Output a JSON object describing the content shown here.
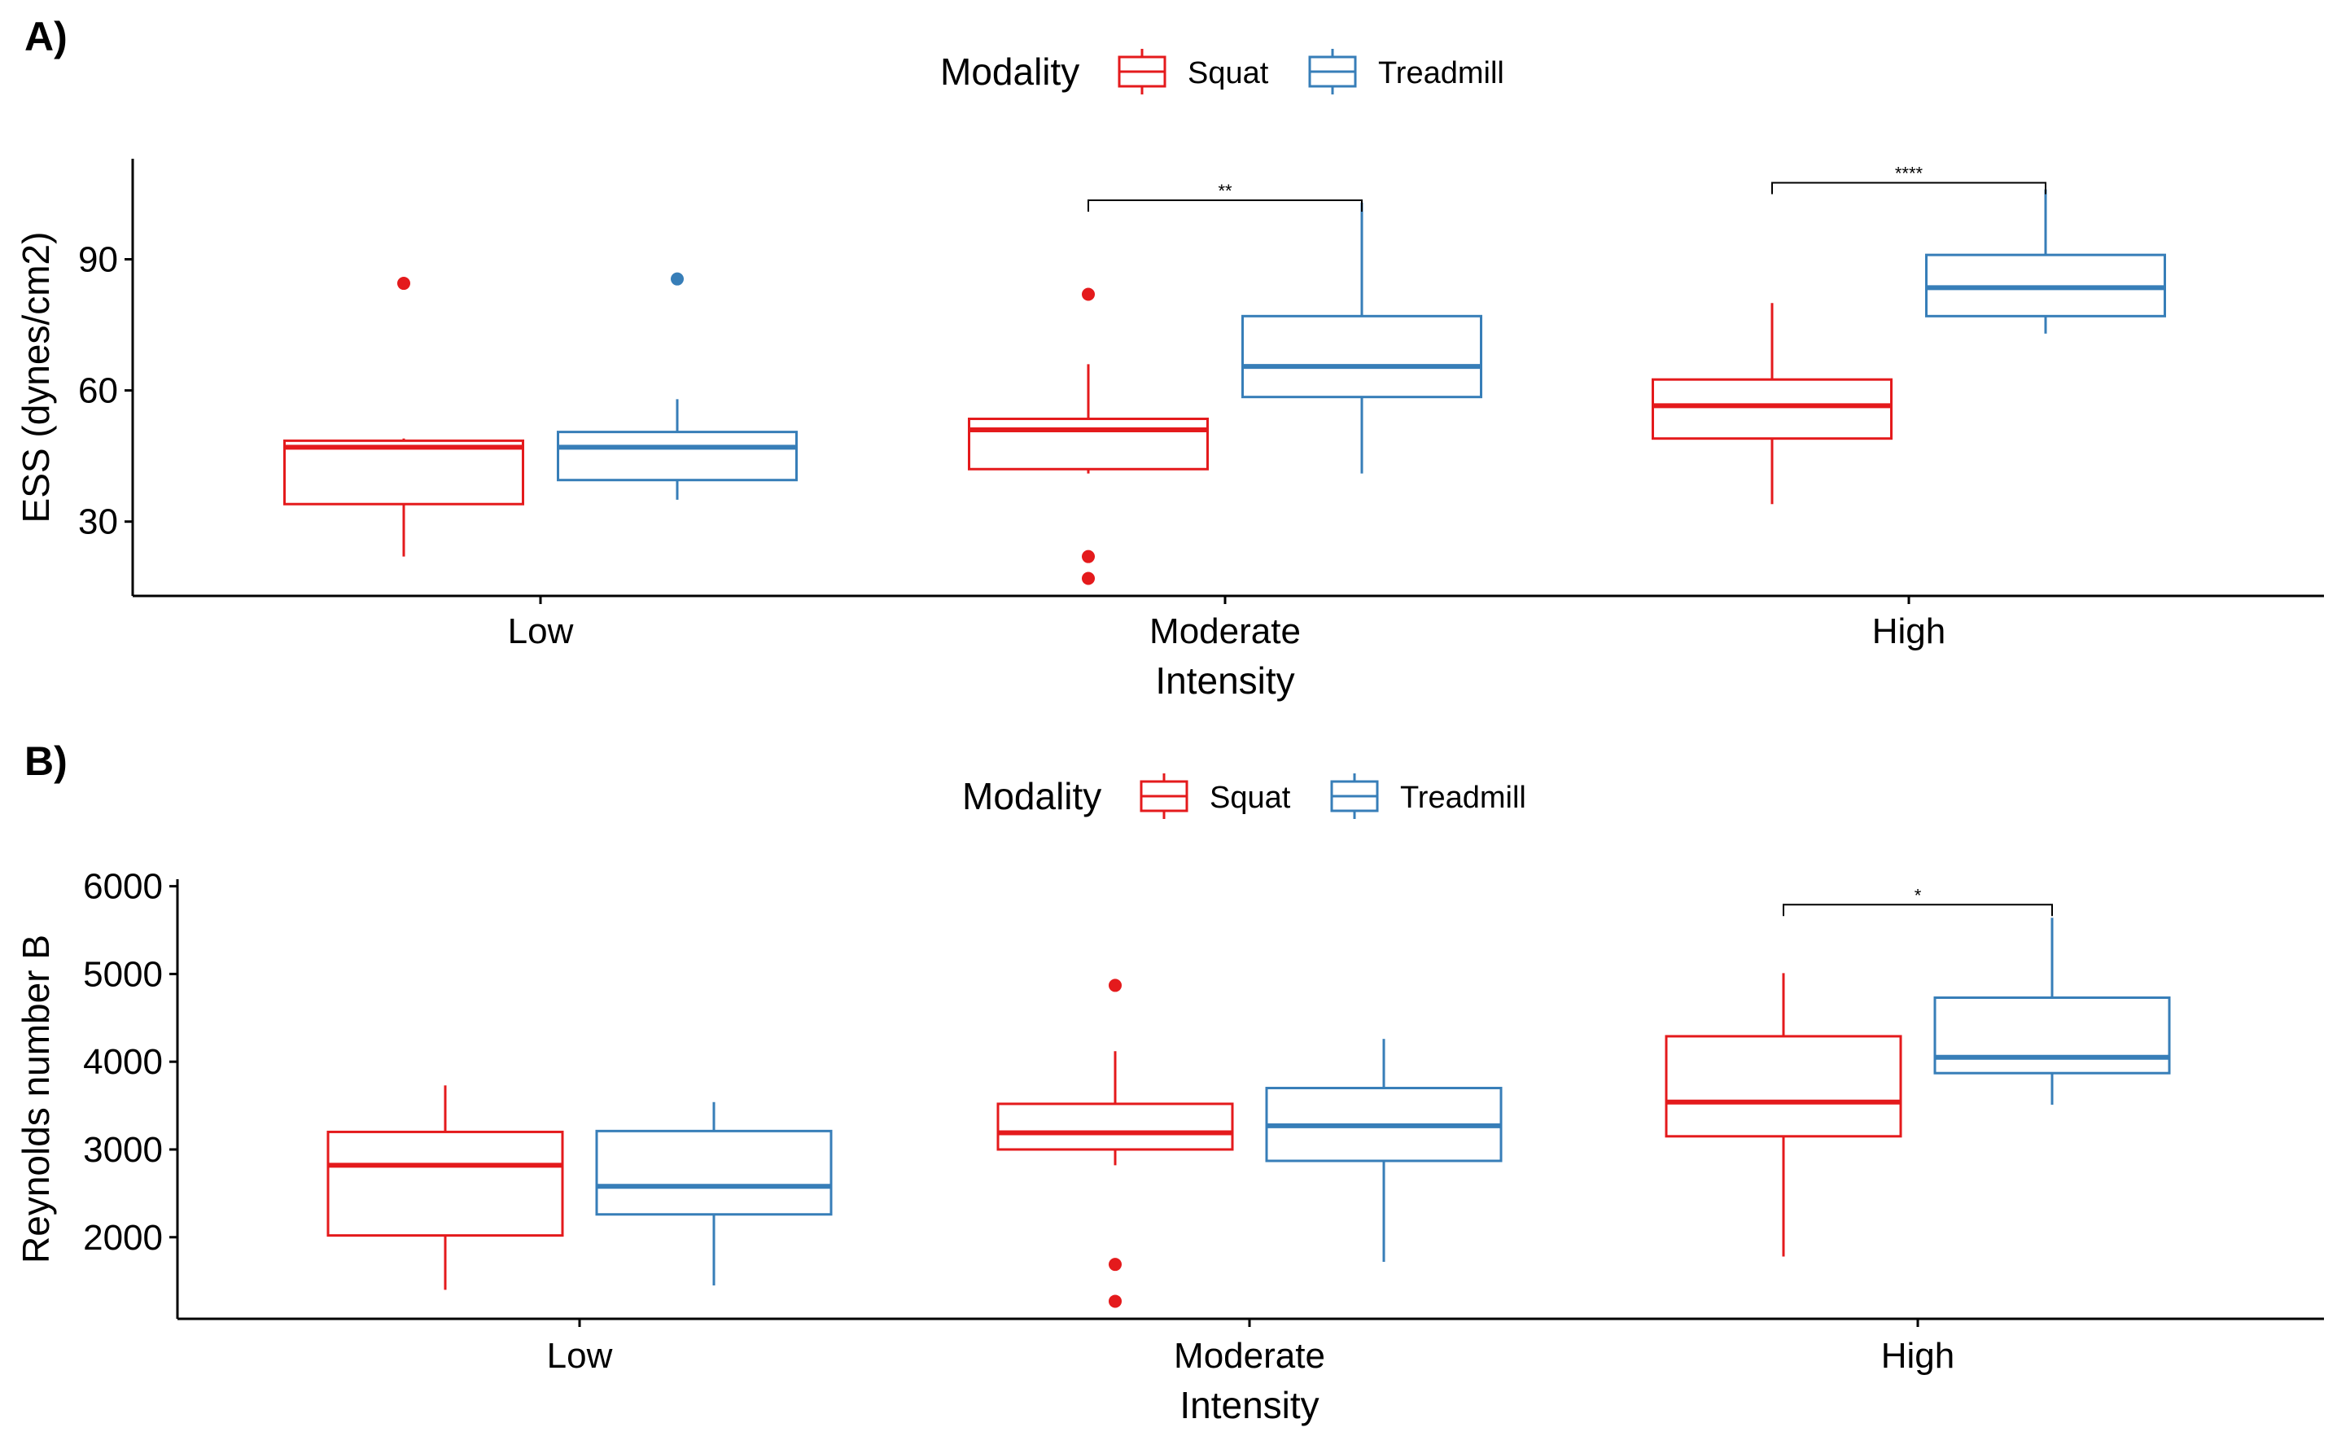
{
  "colors": {
    "Squat": "#E41A1C",
    "Treadmill": "#377EB8",
    "axis": "#000000"
  },
  "chart_data": [
    {
      "panel": "A)",
      "type": "boxplot",
      "legend": {
        "title": "Modality",
        "position": "top",
        "entries": [
          "Squat",
          "Treadmill"
        ]
      },
      "xlabel": "Intensity",
      "ylabel": "ESS (dynes/cm2)",
      "categories": [
        "Low",
        "Moderate",
        "High"
      ],
      "yticks": [
        30,
        60,
        90
      ],
      "ylim": [
        13,
        113
      ],
      "grid": false,
      "series": [
        {
          "name": "Squat",
          "boxes": [
            {
              "category": "Low",
              "lower_whisker": 22,
              "q1": 34,
              "median": 47,
              "q3": 48.5,
              "upper_whisker": 49,
              "outliers": [
                84.5
              ]
            },
            {
              "category": "Moderate",
              "lower_whisker": 41,
              "q1": 42,
              "median": 51,
              "q3": 53.5,
              "upper_whisker": 66,
              "outliers": [
                82,
                22,
                17
              ]
            },
            {
              "category": "High",
              "lower_whisker": 34,
              "q1": 49,
              "median": 56.5,
              "q3": 62.5,
              "upper_whisker": 80,
              "outliers": []
            }
          ]
        },
        {
          "name": "Treadmill",
          "boxes": [
            {
              "category": "Low",
              "lower_whisker": 35,
              "q1": 39.5,
              "median": 47,
              "q3": 50.5,
              "upper_whisker": 58,
              "outliers": [
                85.5
              ]
            },
            {
              "category": "Moderate",
              "lower_whisker": 41,
              "q1": 58.5,
              "median": 65.5,
              "q3": 77,
              "upper_whisker": 103,
              "outliers": []
            },
            {
              "category": "High",
              "lower_whisker": 73,
              "q1": 77,
              "median": 83.5,
              "q3": 91,
              "upper_whisker": 106,
              "outliers": []
            }
          ]
        }
      ],
      "annotations": [
        {
          "category": "Moderate",
          "label": "**",
          "y": 103.5
        },
        {
          "category": "High",
          "label": "****",
          "y": 107.5
        }
      ]
    },
    {
      "panel": "B)",
      "type": "boxplot",
      "legend": {
        "title": "Modality",
        "position": "top",
        "entries": [
          "Squat",
          "Treadmill"
        ]
      },
      "xlabel": "Intensity",
      "ylabel": "Reynolds number B",
      "categories": [
        "Low",
        "Moderate",
        "High"
      ],
      "yticks": [
        2000,
        3000,
        4000,
        5000,
        6000
      ],
      "ylim": [
        1070,
        6080
      ],
      "grid": false,
      "series": [
        {
          "name": "Squat",
          "boxes": [
            {
              "category": "Low",
              "lower_whisker": 1400,
              "q1": 2020,
              "median": 2820,
              "q3": 3200,
              "upper_whisker": 3730,
              "outliers": []
            },
            {
              "category": "Moderate",
              "lower_whisker": 2820,
              "q1": 3000,
              "median": 3190,
              "q3": 3520,
              "upper_whisker": 4120,
              "outliers": [
                4870,
                1690,
                1270
              ]
            },
            {
              "category": "High",
              "lower_whisker": 1780,
              "q1": 3150,
              "median": 3540,
              "q3": 4290,
              "upper_whisker": 5010,
              "outliers": []
            }
          ]
        },
        {
          "name": "Treadmill",
          "boxes": [
            {
              "category": "Low",
              "lower_whisker": 1450,
              "q1": 2260,
              "median": 2580,
              "q3": 3210,
              "upper_whisker": 3540,
              "outliers": []
            },
            {
              "category": "Moderate",
              "lower_whisker": 1720,
              "q1": 2870,
              "median": 3270,
              "q3": 3700,
              "upper_whisker": 4260,
              "outliers": []
            },
            {
              "category": "High",
              "lower_whisker": 3510,
              "q1": 3870,
              "median": 4050,
              "q3": 4730,
              "upper_whisker": 5640,
              "outliers": []
            }
          ]
        }
      ],
      "annotations": [
        {
          "category": "High",
          "label": "*",
          "y": 5790
        }
      ]
    }
  ]
}
